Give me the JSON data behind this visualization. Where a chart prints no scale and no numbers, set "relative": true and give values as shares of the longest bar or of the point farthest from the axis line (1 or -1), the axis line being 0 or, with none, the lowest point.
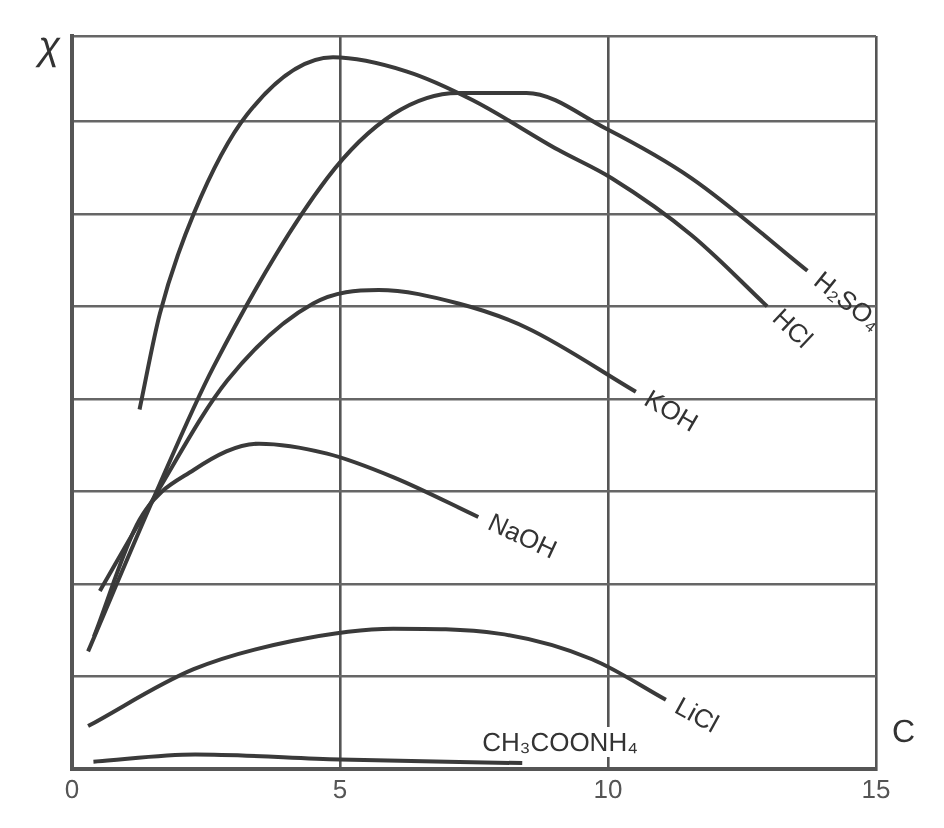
{
  "chart_data": {
    "type": "line",
    "xlabel": "C",
    "ylabel": "χ",
    "relative": true,
    "xlim": [
      0,
      15
    ],
    "xticks": [
      0,
      5,
      10,
      15
    ],
    "grid": true,
    "legend": false,
    "marker": "none",
    "line_style": "solid",
    "series": [
      {
        "name": "H₂SO₄",
        "color": "#3a3a3a",
        "x": [
          0.3,
          1.52,
          2.64,
          4.76,
          5.99,
          7.21,
          8.48,
          9.96,
          11.56,
          13.72
        ],
        "values": [
          0.165,
          0.38,
          0.565,
          0.83,
          0.92,
          0.95,
          0.95,
          0.9,
          0.83,
          0.7
        ]
      },
      {
        "name": "HCl",
        "color": "#3a3a3a",
        "x": [
          1.26,
          1.64,
          2.27,
          3.27,
          4.87,
          6.25,
          7.47,
          9.07,
          10.07,
          11.56,
          12.97
        ],
        "values": [
          0.505,
          0.64,
          0.78,
          0.92,
          1,
          0.98,
          0.94,
          0.87,
          0.83,
          0.75,
          0.65
        ]
      },
      {
        "name": "KOH",
        "color": "#3a3a3a",
        "x": [
          0.52,
          1.52,
          2.9,
          4.5,
          5.72,
          7.21,
          8.48,
          10.52
        ],
        "values": [
          0.25,
          0.38,
          0.546,
          0.654,
          0.673,
          0.654,
          0.62,
          0.53
        ]
      },
      {
        "name": "NaOH",
        "color": "#3a3a3a",
        "x": [
          0.41,
          1.26,
          2.27,
          3.49,
          4.76,
          5.99,
          7.58
        ],
        "values": [
          0.186,
          0.35,
          0.42,
          0.457,
          0.443,
          0.41,
          0.354
        ]
      },
      {
        "name": "LiCl",
        "color": "#3a3a3a",
        "x": [
          0.3,
          2.27,
          4.13,
          5.99,
          7.96,
          9.7,
          11.08
        ],
        "values": [
          0.06,
          0.14,
          0.18,
          0.197,
          0.19,
          0.154,
          0.097
        ]
      },
      {
        "name": "CH₃COONH₄",
        "color": "#3a3a3a",
        "x": [
          0.4,
          2.3,
          5,
          8.4
        ],
        "values": [
          0.01,
          0.02,
          0.013,
          0.008
        ]
      }
    ]
  }
}
